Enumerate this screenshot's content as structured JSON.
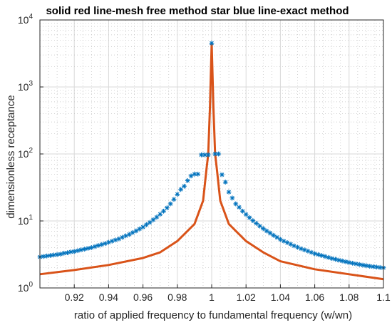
{
  "chart_data": {
    "type": "line",
    "title": "solid red line-mesh free method star blue line-exact method",
    "xlabel": "ratio of applied frequency to fundamental  frequency (w/wn)",
    "ylabel": "dimensionless receptance",
    "xlim": [
      0.9,
      1.1
    ],
    "ylim": [
      1,
      10000
    ],
    "yscale": "log",
    "grid": true,
    "x_ticks": [
      "0.92",
      "0.94",
      "0.96",
      "0.98",
      "1",
      "1.02",
      "1.04",
      "1.06",
      "1.08",
      "1.1"
    ],
    "y_ticks": [
      {
        "base": "10",
        "exp": "0"
      },
      {
        "base": "10",
        "exp": "1"
      },
      {
        "base": "10",
        "exp": "2"
      },
      {
        "base": "10",
        "exp": "3"
      },
      {
        "base": "10",
        "exp": "4"
      }
    ],
    "series": [
      {
        "style": "solid-line",
        "color": "#d95319",
        "x": [
          0.9,
          0.92,
          0.94,
          0.96,
          0.97,
          0.98,
          0.99,
          0.995,
          0.997,
          0.998,
          0.999,
          1.0,
          1.001,
          1.002,
          1.003,
          1.005,
          1.01,
          1.02,
          1.03,
          1.04,
          1.06,
          1.08,
          1.1
        ],
        "y": [
          1.6,
          1.85,
          2.2,
          2.8,
          3.4,
          5.0,
          9.0,
          20,
          60,
          100,
          500,
          4500,
          500,
          100,
          60,
          20,
          9.0,
          5.0,
          3.4,
          2.5,
          1.9,
          1.6,
          1.35
        ]
      },
      {
        "style": "star-markers",
        "color": "#0072bd",
        "x": [
          0.9,
          0.902,
          0.904,
          0.906,
          0.908,
          0.91,
          0.912,
          0.914,
          0.916,
          0.918,
          0.92,
          0.922,
          0.924,
          0.926,
          0.928,
          0.93,
          0.932,
          0.934,
          0.936,
          0.938,
          0.94,
          0.942,
          0.944,
          0.946,
          0.948,
          0.95,
          0.952,
          0.954,
          0.956,
          0.958,
          0.96,
          0.962,
          0.964,
          0.966,
          0.968,
          0.97,
          0.972,
          0.974,
          0.976,
          0.978,
          0.98,
          0.982,
          0.984,
          0.986,
          0.988,
          0.99,
          0.992,
          0.994,
          0.996,
          0.998,
          1.0,
          1.002,
          1.004,
          1.006,
          1.008,
          1.01,
          1.012,
          1.014,
          1.016,
          1.018,
          1.02,
          1.022,
          1.024,
          1.026,
          1.028,
          1.03,
          1.032,
          1.034,
          1.036,
          1.038,
          1.04,
          1.042,
          1.044,
          1.046,
          1.048,
          1.05,
          1.052,
          1.054,
          1.056,
          1.058,
          1.06,
          1.062,
          1.064,
          1.066,
          1.068,
          1.07,
          1.072,
          1.074,
          1.076,
          1.078,
          1.08,
          1.082,
          1.084,
          1.086,
          1.088,
          1.09,
          1.092,
          1.094,
          1.096,
          1.098,
          1.1
        ],
        "y": [
          2.9,
          2.95,
          3.0,
          3.05,
          3.1,
          3.15,
          3.2,
          3.3,
          3.35,
          3.45,
          3.5,
          3.6,
          3.7,
          3.8,
          3.9,
          4.0,
          4.15,
          4.3,
          4.45,
          4.6,
          4.8,
          5.0,
          5.2,
          5.4,
          5.7,
          6.0,
          6.3,
          6.7,
          7.1,
          7.6,
          8.1,
          8.8,
          9.5,
          10.4,
          11.4,
          12.6,
          14.0,
          15.7,
          18.0,
          21.0,
          25.0,
          29.5,
          33.0,
          40.0,
          47.0,
          50.0,
          50.0,
          97.0,
          97.0,
          97.0,
          4500,
          100,
          100,
          49.0,
          38.0,
          27.0,
          22.0,
          18.0,
          16.0,
          14.0,
          12.5,
          11.2,
          10.1,
          9.2,
          8.4,
          7.7,
          7.1,
          6.6,
          6.1,
          5.7,
          5.3,
          5.0,
          4.75,
          4.5,
          4.25,
          4.05,
          3.85,
          3.7,
          3.55,
          3.4,
          3.25,
          3.15,
          3.05,
          2.95,
          2.85,
          2.75,
          2.68,
          2.6,
          2.53,
          2.46,
          2.4,
          2.34,
          2.29,
          2.24,
          2.19,
          2.15,
          2.11,
          2.08,
          2.05,
          2.02,
          2.0
        ]
      }
    ]
  }
}
